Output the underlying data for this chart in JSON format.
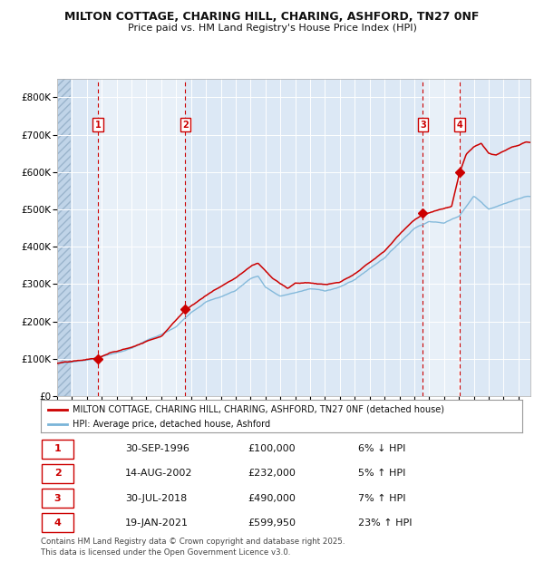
{
  "title_line1": "MILTON COTTAGE, CHARING HILL, CHARING, ASHFORD, TN27 0NF",
  "title_line2": "Price paid vs. HM Land Registry's House Price Index (HPI)",
  "hpi_color": "#7ab4d8",
  "price_color": "#cc0000",
  "background_color": "#ffffff",
  "plot_bg_color": "#dce8f5",
  "ylim": [
    0,
    850000
  ],
  "yticks": [
    0,
    100000,
    200000,
    300000,
    400000,
    500000,
    600000,
    700000,
    800000
  ],
  "ytick_labels": [
    "£0",
    "£100K",
    "£200K",
    "£300K",
    "£400K",
    "£500K",
    "£600K",
    "£700K",
    "£800K"
  ],
  "xlim_start": 1994.0,
  "xlim_end": 2025.8,
  "sale_dates": [
    1996.75,
    2002.62,
    2018.58,
    2021.05
  ],
  "sale_prices": [
    100000,
    232000,
    490000,
    599950
  ],
  "sale_labels": [
    "1",
    "2",
    "3",
    "4"
  ],
  "legend_line1": "MILTON COTTAGE, CHARING HILL, CHARING, ASHFORD, TN27 0NF (detached house)",
  "legend_line2": "HPI: Average price, detached house, Ashford",
  "table_rows": [
    [
      "1",
      "30-SEP-1996",
      "£100,000",
      "6% ↓ HPI"
    ],
    [
      "2",
      "14-AUG-2002",
      "£232,000",
      "5% ↑ HPI"
    ],
    [
      "3",
      "30-JUL-2018",
      "£490,000",
      "7% ↑ HPI"
    ],
    [
      "4",
      "19-JAN-2021",
      "£599,950",
      "23% ↑ HPI"
    ]
  ],
  "footnote": "Contains HM Land Registry data © Crown copyright and database right 2025.\nThis data is licensed under the Open Government Licence v3.0.",
  "hpi_anchors_x": [
    1994.0,
    1995.0,
    1996.0,
    1997.0,
    1998.0,
    1999.0,
    2000.0,
    2001.0,
    2002.0,
    2003.0,
    2004.0,
    2005.0,
    2006.0,
    2007.0,
    2007.5,
    2008.0,
    2009.0,
    2010.0,
    2011.0,
    2012.0,
    2013.0,
    2014.0,
    2015.0,
    2016.0,
    2017.0,
    2018.0,
    2019.0,
    2020.0,
    2021.0,
    2022.0,
    2023.0,
    2024.0,
    2025.5
  ],
  "hpi_anchors_y": [
    88000,
    92000,
    98000,
    108000,
    118000,
    130000,
    150000,
    165000,
    185000,
    225000,
    255000,
    268000,
    285000,
    318000,
    325000,
    295000,
    270000,
    280000,
    290000,
    285000,
    295000,
    315000,
    345000,
    375000,
    415000,
    455000,
    475000,
    470000,
    490000,
    545000,
    510000,
    525000,
    545000
  ],
  "price_anchors_x": [
    1994.0,
    1995.5,
    1996.75,
    1997.5,
    1999.0,
    2001.0,
    2002.62,
    2003.5,
    2004.5,
    2006.0,
    2007.0,
    2007.5,
    2008.5,
    2009.5,
    2010.0,
    2011.0,
    2012.0,
    2013.0,
    2014.0,
    2015.0,
    2016.0,
    2017.0,
    2018.0,
    2018.58,
    2019.5,
    2020.5,
    2021.05,
    2021.5,
    2022.0,
    2022.5,
    2023.0,
    2023.5,
    2024.0,
    2024.5,
    2025.0,
    2025.5
  ],
  "price_anchors_y": [
    88000,
    93000,
    100000,
    112000,
    128000,
    160000,
    232000,
    258000,
    285000,
    320000,
    350000,
    360000,
    320000,
    295000,
    310000,
    310000,
    305000,
    310000,
    330000,
    360000,
    390000,
    435000,
    475000,
    490000,
    500000,
    510000,
    599950,
    650000,
    670000,
    680000,
    655000,
    650000,
    660000,
    670000,
    675000,
    685000
  ]
}
